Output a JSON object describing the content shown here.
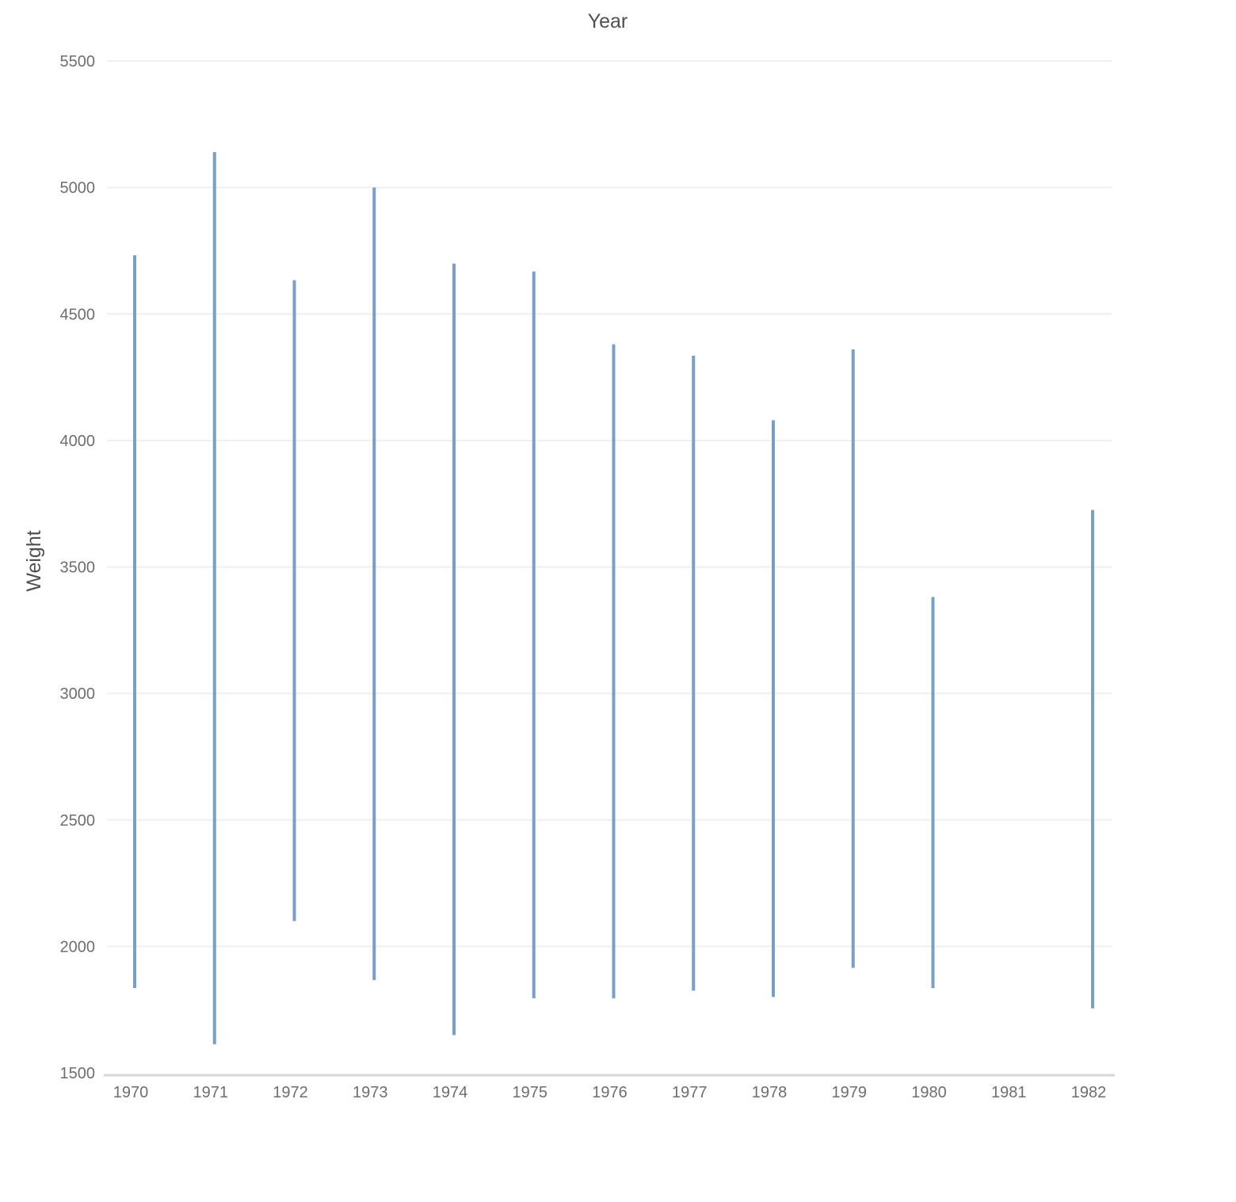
{
  "chart_data": {
    "type": "range-bar",
    "title": "",
    "xlabel": "Year",
    "ylabel": "Weight",
    "x_axis_position": "top-title",
    "ylim": [
      1500,
      5500
    ],
    "yticks": [
      1500,
      2000,
      2500,
      3000,
      3500,
      4000,
      4500,
      5000,
      5500
    ],
    "grid": true,
    "legend": "none",
    "bar_color": "#7a9fc7",
    "grid_color": "#efefef",
    "baseline_color": "#d6d6d6",
    "categories": [
      "1970",
      "1971",
      "1972",
      "1973",
      "1974",
      "1975",
      "1976",
      "1977",
      "1978",
      "1979",
      "1980",
      "1981",
      "1982"
    ],
    "series": [
      {
        "low": [
          1835,
          1613,
          2100,
          1867,
          1649,
          1795,
          1795,
          1825,
          1800,
          1915,
          1835,
          null,
          1755
        ],
        "high": [
          4732,
          5140,
          4633,
          5000,
          4699,
          4668,
          4380,
          4335,
          4080,
          4360,
          3381,
          null,
          3725
        ]
      }
    ]
  }
}
